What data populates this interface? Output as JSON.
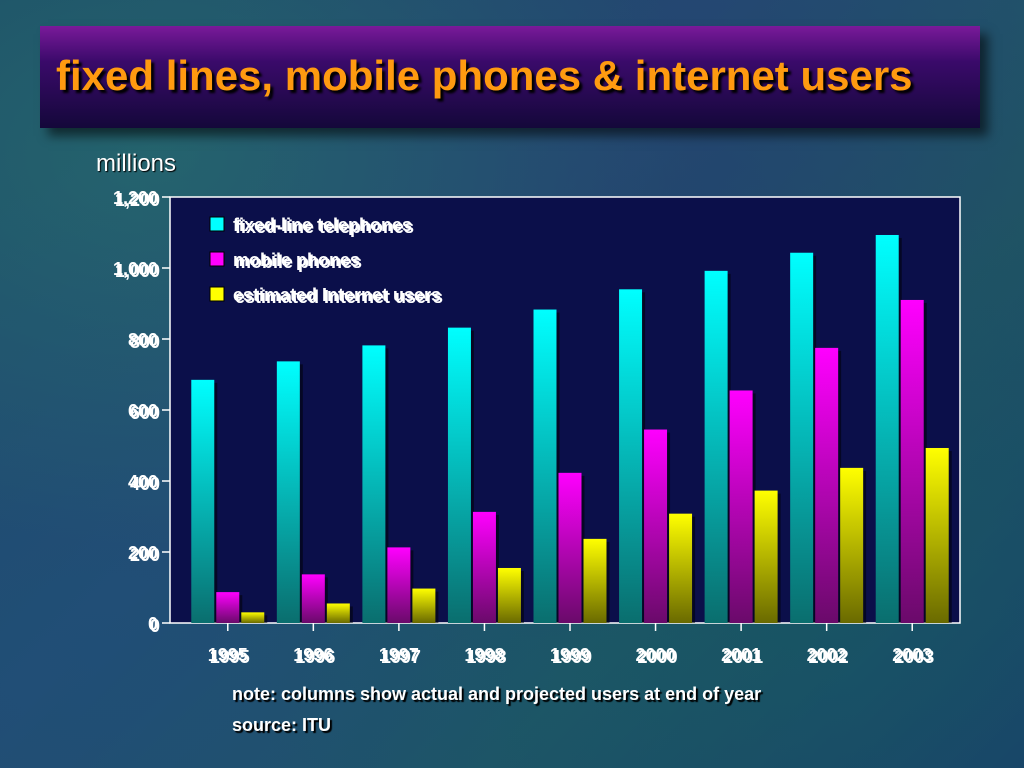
{
  "title": "fixed lines, mobile phones & internet users",
  "units_label": "millions",
  "notes": [
    "note: columns show actual and projected users at end of year",
    "source: ITU"
  ],
  "colors": {
    "fixed": "#00ffff",
    "mobile": "#ff00ff",
    "internet": "#ffff00",
    "plot_bg": "#0b0f4a",
    "title": "#ff9a10"
  },
  "chart_data": {
    "type": "bar",
    "categories": [
      "1995",
      "1996",
      "1997",
      "1998",
      "1999",
      "2000",
      "2001",
      "2002",
      "2003"
    ],
    "series": [
      {
        "name": "fixed-line telephones",
        "values": [
          685,
          737,
          782,
          832,
          883,
          940,
          992,
          1043,
          1093
        ]
      },
      {
        "name": "mobile phones",
        "values": [
          87,
          137,
          213,
          313,
          423,
          545,
          655,
          775,
          910
        ]
      },
      {
        "name": "estimated Internet users",
        "values": [
          30,
          55,
          97,
          155,
          237,
          308,
          373,
          437,
          493
        ]
      }
    ],
    "ylim": [
      0,
      1200
    ],
    "yticks": [
      0,
      200,
      400,
      600,
      800,
      1000,
      1200
    ],
    "ytick_labels": [
      "0",
      "200",
      "400",
      "600",
      "800",
      "1,000",
      "1,200"
    ],
    "legend_position": "top-left",
    "grid": false
  }
}
